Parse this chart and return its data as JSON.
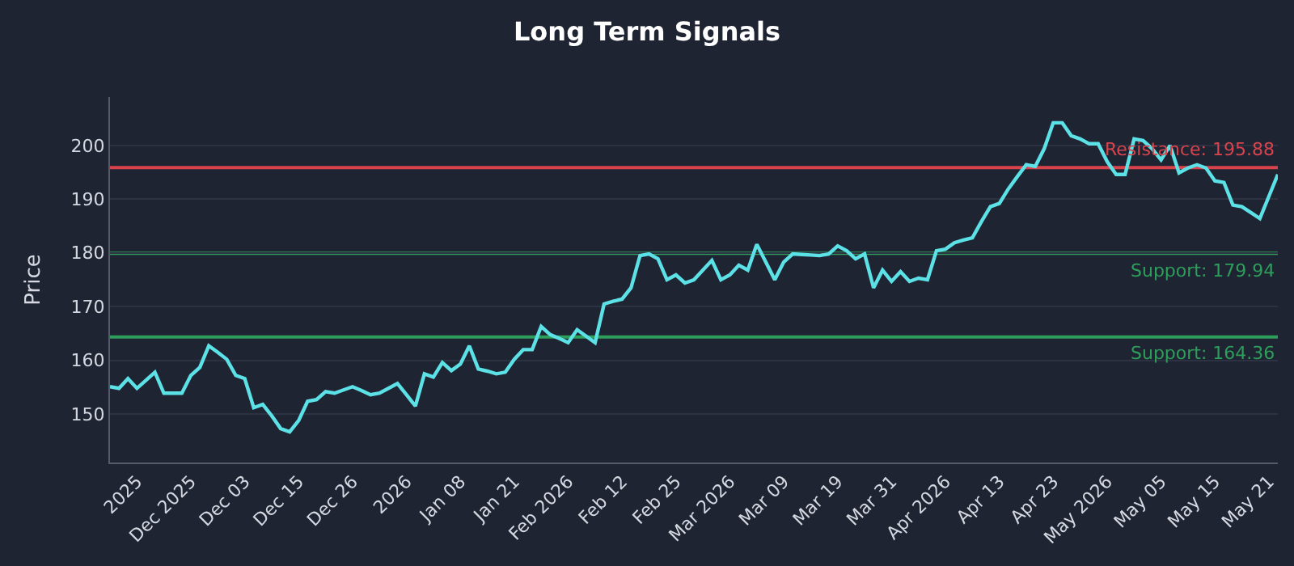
{
  "chart_data": {
    "type": "line",
    "title": "Long Term Signals",
    "ylabel": "Price",
    "categories": [
      null,
      null,
      null,
      "2025",
      null,
      null,
      null,
      null,
      null,
      "Dec 2025",
      null,
      null,
      null,
      null,
      null,
      "Dec 03",
      null,
      null,
      null,
      null,
      null,
      "Dec 15",
      null,
      null,
      null,
      null,
      null,
      "Dec 26",
      null,
      null,
      null,
      null,
      null,
      "2026",
      null,
      null,
      null,
      null,
      null,
      "Jan 08",
      null,
      null,
      null,
      null,
      null,
      "Jan 21",
      null,
      null,
      null,
      null,
      null,
      "Feb 2026",
      null,
      null,
      null,
      null,
      null,
      "Feb 12",
      null,
      null,
      null,
      null,
      null,
      "Feb 25",
      null,
      null,
      null,
      null,
      null,
      "Mar 2026",
      null,
      null,
      null,
      null,
      null,
      "Mar 09",
      null,
      null,
      null,
      null,
      null,
      "Mar 19",
      null,
      null,
      null,
      null,
      null,
      "Mar 31",
      null,
      null,
      null,
      null,
      null,
      "Apr 2026",
      null,
      null,
      null,
      null,
      null,
      "Apr 13",
      null,
      null,
      null,
      null,
      null,
      "Apr 23",
      null,
      null,
      null,
      null,
      null,
      "May 2026",
      null,
      null,
      null,
      null,
      null,
      "May 05",
      null,
      null,
      null,
      null,
      null,
      "May 15",
      null,
      null,
      null,
      null,
      null,
      "May 21",
      null
    ],
    "series": [
      {
        "color": "#5ce1e6",
        "values": [
          155.1,
          154.8,
          156.6,
          154.8,
          156.3,
          157.8,
          153.9,
          153.9,
          153.9,
          157.2,
          158.7,
          162.7,
          161.5,
          160.2,
          157.2,
          156.6,
          151.2,
          151.8,
          149.7,
          147.3,
          146.7,
          148.8,
          152.4,
          152.7,
          154.2,
          153.9,
          154.5,
          155.1,
          154.4,
          153.6,
          153.9,
          154.8,
          155.7,
          153.6,
          151.5,
          157.5,
          156.9,
          159.6,
          158.1,
          159.3,
          162.7,
          158.4,
          158.0,
          157.5,
          157.8,
          160.2,
          162.0,
          162.0,
          166.3,
          164.8,
          164.1,
          163.3,
          165.7,
          164.5,
          163.3,
          170.5,
          171.0,
          171.4,
          173.5,
          179.5,
          179.8,
          178.9,
          175.0,
          175.9,
          174.4,
          175.0,
          176.8,
          178.6,
          175.0,
          175.9,
          177.7,
          176.8,
          181.6,
          178.3,
          175.0,
          178.3,
          179.8,
          179.7,
          179.6,
          179.5,
          179.8,
          181.3,
          180.4,
          178.9,
          179.8,
          173.5,
          176.8,
          174.7,
          176.5,
          174.7,
          175.3,
          175.0,
          180.4,
          180.7,
          181.9,
          182.4,
          182.8,
          185.8,
          188.6,
          189.2,
          191.9,
          194.2,
          196.4,
          196.1,
          199.4,
          204.2,
          204.2,
          201.8,
          201.2,
          200.3,
          200.3,
          197.0,
          194.6,
          194.6,
          201.2,
          200.9,
          199.4,
          197.3,
          200.0,
          194.9,
          195.8,
          196.4,
          195.8,
          193.4,
          193.1,
          188.9,
          188.6,
          187.5,
          186.4,
          190.5,
          194.6
        ]
      }
    ],
    "ylim": [
      141,
      209
    ],
    "yticks": [
      150,
      160,
      170,
      180,
      190,
      200
    ],
    "grid": "y",
    "legend": false,
    "marker": "none",
    "line_style": "solid",
    "ref_lines": [
      {
        "axis": "y",
        "value": 195.88,
        "label": "Resistance: 195.88",
        "color": "#d9434b"
      },
      {
        "axis": "y",
        "value": 179.94,
        "label": "Support: 179.94",
        "color": "#2e9e5b"
      },
      {
        "axis": "y",
        "value": 164.36,
        "label": "Support: 164.36",
        "color": "#2e9e5b"
      }
    ]
  }
}
